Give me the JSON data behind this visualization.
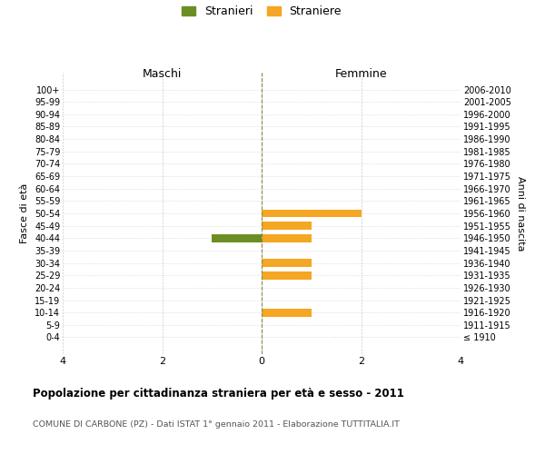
{
  "age_groups": [
    "100+",
    "95-99",
    "90-94",
    "85-89",
    "80-84",
    "75-79",
    "70-74",
    "65-69",
    "60-64",
    "55-59",
    "50-54",
    "45-49",
    "40-44",
    "35-39",
    "30-34",
    "25-29",
    "20-24",
    "15-19",
    "10-14",
    "5-9",
    "0-4"
  ],
  "birth_years": [
    "≤ 1910",
    "1911-1915",
    "1916-1920",
    "1921-1925",
    "1926-1930",
    "1931-1935",
    "1936-1940",
    "1941-1945",
    "1946-1950",
    "1951-1955",
    "1956-1960",
    "1961-1965",
    "1966-1970",
    "1971-1975",
    "1976-1980",
    "1981-1985",
    "1986-1990",
    "1991-1995",
    "1996-2000",
    "2001-2005",
    "2006-2010"
  ],
  "maschi": [
    0,
    0,
    0,
    0,
    0,
    0,
    0,
    0,
    0,
    0,
    0,
    0,
    1,
    0,
    0,
    0,
    0,
    0,
    0,
    0,
    0
  ],
  "femmine": [
    0,
    0,
    0,
    0,
    0,
    0,
    0,
    0,
    0,
    0,
    2,
    1,
    1,
    0,
    1,
    1,
    0,
    0,
    1,
    0,
    0
  ],
  "color_maschi": "#6b8e23",
  "color_femmine": "#f5a623",
  "xlim": 4,
  "title1": "Popolazione per cittadinanza straniera per età e sesso - 2011",
  "title2": "COMUNE DI CARBONE (PZ) - Dati ISTAT 1° gennaio 2011 - Elaborazione TUTTITALIA.IT",
  "legend_maschi": "Stranieri",
  "legend_femmine": "Straniere",
  "xlabel_left": "Maschi",
  "xlabel_right": "Femmine",
  "ylabel_left": "Fasce di età",
  "ylabel_right": "Anni di nascita",
  "background_color": "#ffffff",
  "grid_color": "#cccccc"
}
